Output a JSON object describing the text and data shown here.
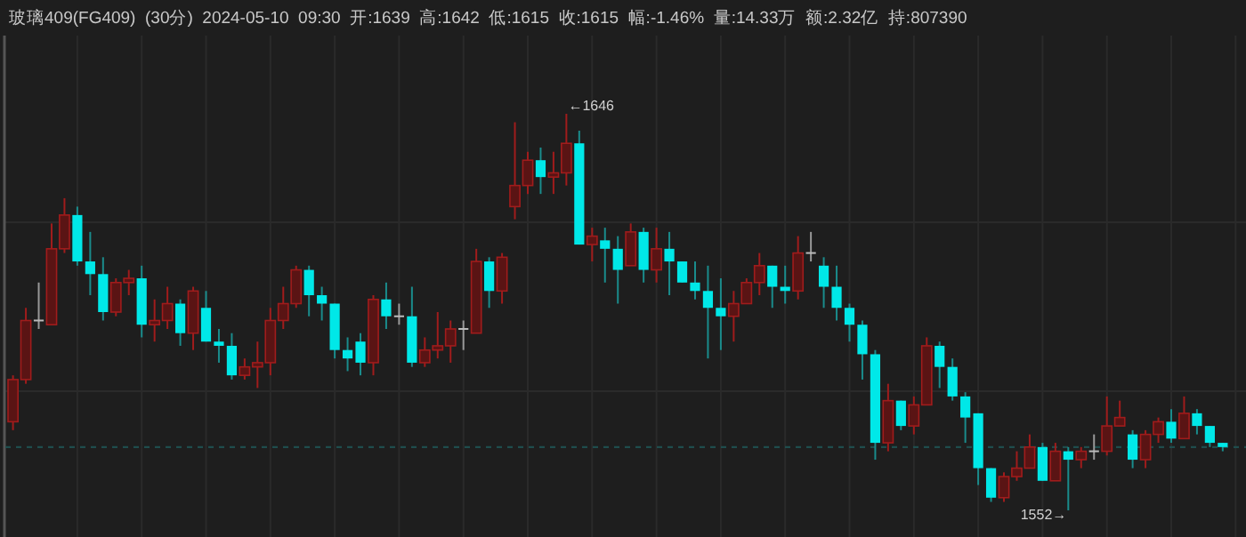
{
  "chart_data": {
    "type": "candlestick",
    "title": "玻璃409(FG409)  (30分)  2024-05-10  09:30  开:1639  高:1642  低:1615  收:1615  幅:-1.46%  量:14.33万  额:2.32亿  持:807390",
    "annotations": [
      "←1646",
      "1552→"
    ],
    "categories": [
      null,
      null,
      null,
      null,
      null,
      null,
      null,
      null,
      null,
      null,
      null,
      null,
      null,
      null,
      null,
      null,
      null,
      null,
      null,
      null,
      null,
      null,
      null,
      null,
      null,
      null,
      null,
      null,
      null,
      null,
      null,
      null,
      null,
      null,
      null,
      null,
      null,
      null,
      null,
      null,
      null,
      null,
      null,
      null,
      null,
      null,
      null,
      null,
      null,
      null,
      null,
      null,
      null,
      null,
      null,
      null,
      null,
      null,
      null,
      null,
      null,
      null,
      null,
      null,
      null,
      null,
      null,
      null,
      null,
      null,
      null,
      null,
      null,
      null,
      null,
      null,
      null,
      null,
      null,
      null,
      null,
      null,
      null,
      null,
      null,
      null,
      null,
      null,
      null,
      null,
      null,
      null,
      null,
      null,
      null
    ],
    "ohlc": [
      [
        1573,
        1584,
        1571,
        1583
      ],
      [
        1583,
        1600,
        1582,
        1597
      ],
      [
        1597,
        1606,
        1595,
        1597
      ],
      [
        1596,
        1620,
        1596,
        1614
      ],
      [
        1614,
        1626,
        1613,
        1622
      ],
      [
        1622,
        1624,
        1610,
        1611
      ],
      [
        1611,
        1618,
        1603,
        1608
      ],
      [
        1608,
        1612,
        1597,
        1599
      ],
      [
        1599,
        1607,
        1598,
        1606
      ],
      [
        1606,
        1609,
        1603,
        1607
      ],
      [
        1607,
        1610,
        1593,
        1596
      ],
      [
        1596,
        1602,
        1592,
        1597
      ],
      [
        1597,
        1605,
        1595,
        1601
      ],
      [
        1601,
        1602,
        1591,
        1594
      ],
      [
        1594,
        1605,
        1590,
        1604
      ],
      [
        1600,
        1604,
        1592,
        1592
      ],
      [
        1592,
        1595,
        1587,
        1591
      ],
      [
        1591,
        1594,
        1583,
        1584
      ],
      [
        1584,
        1588,
        1583,
        1586
      ],
      [
        1586,
        1592,
        1581,
        1587
      ],
      [
        1587,
        1600,
        1584,
        1597
      ],
      [
        1597,
        1605,
        1595,
        1601
      ],
      [
        1601,
        1610,
        1600,
        1609
      ],
      [
        1609,
        1610,
        1598,
        1603
      ],
      [
        1603,
        1605,
        1597,
        1601
      ],
      [
        1601,
        1601,
        1588,
        1590
      ],
      [
        1590,
        1593,
        1585,
        1588
      ],
      [
        1592,
        1594,
        1584,
        1587
      ],
      [
        1587,
        1603,
        1584,
        1602
      ],
      [
        1602,
        1606,
        1595,
        1598
      ],
      [
        1598,
        1601,
        1596,
        1598
      ],
      [
        1598,
        1605,
        1586,
        1587
      ],
      [
        1587,
        1593,
        1586,
        1590
      ],
      [
        1590,
        1599,
        1588,
        1591
      ],
      [
        1591,
        1597,
        1587,
        1595
      ],
      [
        1595,
        1597,
        1590,
        1595
      ],
      [
        1594,
        1614,
        1594,
        1611
      ],
      [
        1611,
        1612,
        1600,
        1604
      ],
      [
        1604,
        1613,
        1601,
        1612
      ],
      [
        1624,
        1644,
        1621,
        1629
      ],
      [
        1629,
        1637,
        1627,
        1635
      ],
      [
        1635,
        1638,
        1627,
        1631
      ],
      [
        1631,
        1637,
        1627,
        1632
      ],
      [
        1632,
        1646,
        1629,
        1639
      ],
      [
        1639,
        1642,
        1615,
        1615
      ],
      [
        1615,
        1619,
        1611,
        1617
      ],
      [
        1616,
        1619,
        1606,
        1614
      ],
      [
        1614,
        1617,
        1601,
        1609
      ],
      [
        1610,
        1620,
        1610,
        1618
      ],
      [
        1618,
        1619,
        1606,
        1609
      ],
      [
        1609,
        1619,
        1606,
        1614
      ],
      [
        1614,
        1618,
        1603,
        1611
      ],
      [
        1611,
        1611,
        1606,
        1606
      ],
      [
        1606,
        1611,
        1602,
        1604
      ],
      [
        1604,
        1610,
        1588,
        1600
      ],
      [
        1600,
        1607,
        1590,
        1598
      ],
      [
        1598,
        1604,
        1592,
        1601
      ],
      [
        1601,
        1607,
        1601,
        1606
      ],
      [
        1606,
        1613,
        1603,
        1610
      ],
      [
        1610,
        1610,
        1600,
        1605
      ],
      [
        1605,
        1610,
        1601,
        1604
      ],
      [
        1604,
        1617,
        1602,
        1613
      ],
      [
        1613,
        1618,
        1611,
        1613
      ],
      [
        1610,
        1612,
        1600,
        1605
      ],
      [
        1605,
        1610,
        1597,
        1600
      ],
      [
        1600,
        1601,
        1592,
        1596
      ],
      [
        1596,
        1597,
        1583,
        1589
      ],
      [
        1589,
        1590,
        1564,
        1568
      ],
      [
        1568,
        1582,
        1566,
        1578
      ],
      [
        1578,
        1578,
        1571,
        1572
      ],
      [
        1572,
        1579,
        1570,
        1577
      ],
      [
        1577,
        1593,
        1577,
        1591
      ],
      [
        1591,
        1592,
        1581,
        1586
      ],
      [
        1586,
        1588,
        1578,
        1579
      ],
      [
        1579,
        1580,
        1568,
        1574
      ],
      [
        1575,
        1575,
        1558,
        1562
      ],
      [
        1562,
        1562,
        1554,
        1555
      ],
      [
        1555,
        1561,
        1554,
        1560
      ],
      [
        1560,
        1566,
        1559,
        1562
      ],
      [
        1562,
        1570,
        1562,
        1567
      ],
      [
        1567,
        1568,
        1559,
        1559
      ],
      [
        1559,
        1568,
        1559,
        1566
      ],
      [
        1566,
        1567,
        1552,
        1564
      ],
      [
        1564,
        1567,
        1562,
        1566
      ],
      [
        1566,
        1570,
        1564,
        1566
      ],
      [
        1566,
        1579,
        1565,
        1572
      ],
      [
        1572,
        1578,
        1572,
        1574
      ],
      [
        1570,
        1571,
        1562,
        1564
      ],
      [
        1564,
        1571,
        1562,
        1570
      ],
      [
        1570,
        1574,
        1568,
        1573
      ],
      [
        1573,
        1576,
        1568,
        1569
      ],
      [
        1569,
        1579,
        1569,
        1575
      ],
      [
        1575,
        1576,
        1570,
        1572
      ],
      [
        1572,
        1572,
        1567,
        1568
      ],
      [
        1568,
        1568,
        1566,
        1567
      ]
    ],
    "ref_lines": [
      {
        "axis": "y",
        "value": 1567,
        "color": "#1f4d4d",
        "line_style": "dashed"
      }
    ],
    "grid": true
  }
}
